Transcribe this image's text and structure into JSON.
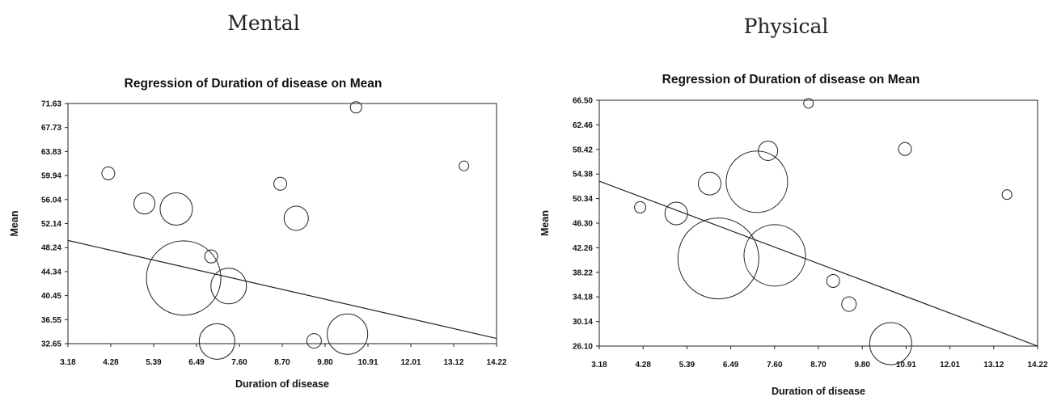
{
  "panels": [
    {
      "heading": "Mental",
      "chart_data": {
        "type": "scatter",
        "title": "Regression of Duration of disease on Mean",
        "xlabel": "Duration of disease",
        "ylabel": "Mean",
        "xlim": [
          3.18,
          14.22
        ],
        "ylim": [
          32.65,
          71.63
        ],
        "xticks": [
          "3.18",
          "4.28",
          "5.39",
          "6.49",
          "7.60",
          "8.70",
          "9.80",
          "10.91",
          "12.01",
          "13.12",
          "14.22"
        ],
        "yticks": [
          "32.65",
          "36.55",
          "40.45",
          "44.34",
          "48.24",
          "52.14",
          "56.04",
          "59.94",
          "63.83",
          "67.73",
          "71.63"
        ],
        "points": [
          {
            "x": 4.22,
            "y": 60.3,
            "size": 8
          },
          {
            "x": 5.15,
            "y": 55.4,
            "size": 13
          },
          {
            "x": 5.97,
            "y": 54.5,
            "size": 20
          },
          {
            "x": 6.16,
            "y": 43.3,
            "size": 46
          },
          {
            "x": 6.87,
            "y": 46.8,
            "size": 8
          },
          {
            "x": 7.02,
            "y": 33.0,
            "size": 22
          },
          {
            "x": 7.32,
            "y": 42.0,
            "size": 22
          },
          {
            "x": 8.65,
            "y": 58.6,
            "size": 8
          },
          {
            "x": 9.06,
            "y": 53.0,
            "size": 15
          },
          {
            "x": 9.52,
            "y": 33.1,
            "size": 9
          },
          {
            "x": 10.38,
            "y": 34.2,
            "size": 25
          },
          {
            "x": 10.6,
            "y": 71.0,
            "size": 7
          },
          {
            "x": 13.38,
            "y": 61.5,
            "size": 6
          }
        ],
        "regression": {
          "x": [
            3.18,
            14.22
          ],
          "y": [
            49.4,
            33.5
          ]
        },
        "grid": false
      }
    },
    {
      "heading": "Physical",
      "chart_data": {
        "type": "scatter",
        "title": "Regression of Duration of disease on Mean",
        "xlabel": "Duration of disease",
        "ylabel": "Mean",
        "xlim": [
          3.18,
          14.22
        ],
        "ylim": [
          26.1,
          66.5
        ],
        "xticks": [
          "3.18",
          "4.28",
          "5.39",
          "6.49",
          "7.60",
          "8.70",
          "9.80",
          "10.91",
          "12.01",
          "13.12",
          "14.22"
        ],
        "yticks": [
          "26.10",
          "30.14",
          "34.18",
          "38.22",
          "42.26",
          "46.30",
          "50.34",
          "54.38",
          "58.42",
          "62.46",
          "66.50"
        ],
        "points": [
          {
            "x": 4.21,
            "y": 48.9,
            "size": 7
          },
          {
            "x": 5.12,
            "y": 47.9,
            "size": 14
          },
          {
            "x": 5.96,
            "y": 52.8,
            "size": 14
          },
          {
            "x": 6.18,
            "y": 40.5,
            "size": 50
          },
          {
            "x": 7.15,
            "y": 53.1,
            "size": 38
          },
          {
            "x": 7.43,
            "y": 58.2,
            "size": 12
          },
          {
            "x": 7.6,
            "y": 41.0,
            "size": 38
          },
          {
            "x": 8.45,
            "y": 66.0,
            "size": 6
          },
          {
            "x": 9.07,
            "y": 36.8,
            "size": 8
          },
          {
            "x": 9.47,
            "y": 33.0,
            "size": 9
          },
          {
            "x": 10.52,
            "y": 26.5,
            "size": 26
          },
          {
            "x": 10.88,
            "y": 58.5,
            "size": 8
          },
          {
            "x": 13.45,
            "y": 51.0,
            "size": 6
          }
        ],
        "regression": {
          "x": [
            3.18,
            14.22
          ],
          "y": [
            53.2,
            26.1
          ]
        },
        "grid": false
      }
    }
  ]
}
